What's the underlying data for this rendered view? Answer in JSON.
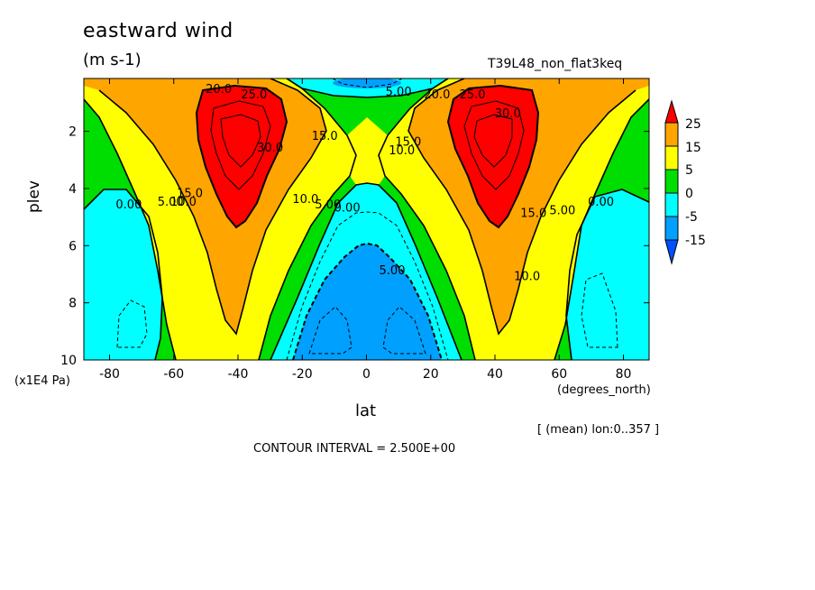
{
  "chart_data": {
    "type": "contour",
    "title": "eastward wind",
    "units": "(m s-1)",
    "run_name": "T39L48_non_flat3keq",
    "xlabel": "lat",
    "x_units": "(degrees_north)",
    "ylabel": "plev",
    "y_units": "(x1E4 Pa)",
    "xlim": [
      -88,
      88
    ],
    "ylim": [
      10,
      0.15
    ],
    "y_inverted": true,
    "x_ticks": [
      -80,
      -60,
      -40,
      -20,
      0,
      20,
      40,
      60,
      80
    ],
    "y_ticks": [
      2,
      4,
      6,
      8,
      10
    ],
    "contour_interval_text": "CONTOUR INTERVAL = 2.500E+00",
    "average_note": "[ (mean) lon:0..357 ]",
    "colorbar": {
      "labels": [
        "25",
        "15",
        "5",
        "0",
        "-5",
        "-15"
      ],
      "colors": [
        "#ff0000",
        "#ffa500",
        "#ffff00",
        "#00dd00",
        "#00ffff",
        "#00a0ff",
        "#0050ff"
      ]
    },
    "jets": [
      {
        "lat": -40,
        "plev": 2.0,
        "max": 35
      },
      {
        "lat": 40,
        "plev": 2.0,
        "max": 35
      }
    ],
    "easterly_minimum": {
      "lat": 0,
      "plev": 9.2,
      "min": -17.5
    },
    "contour_labels": [
      {
        "text": "20.0",
        "lat": -46,
        "plev": 0.65
      },
      {
        "text": "25.0",
        "lat": -35,
        "plev": 0.85
      },
      {
        "text": "30.0",
        "lat": -30,
        "plev": 2.7
      },
      {
        "text": "15.0",
        "lat": -13,
        "plev": 2.3
      },
      {
        "text": "10.0",
        "lat": -19,
        "plev": 4.5
      },
      {
        "text": "5.00",
        "lat": -12,
        "plev": 4.7
      },
      {
        "text": "0.00",
        "lat": -6,
        "plev": 4.8
      },
      {
        "text": "15.0",
        "lat": -55,
        "plev": 4.3
      },
      {
        "text": "10.0",
        "lat": -57,
        "plev": 4.6
      },
      {
        "text": "5.00",
        "lat": -61,
        "plev": 4.6
      },
      {
        "text": "0.00",
        "lat": -74,
        "plev": 4.7
      },
      {
        "text": "5.00",
        "lat": 10,
        "plev": 0.75
      },
      {
        "text": "20.0",
        "lat": 22,
        "plev": 0.85
      },
      {
        "text": "25.0",
        "lat": 33,
        "plev": 0.85
      },
      {
        "text": "30.0",
        "lat": 44,
        "plev": 1.5
      },
      {
        "text": "15.0",
        "lat": 13,
        "plev": 2.5
      },
      {
        "text": "10.0",
        "lat": 11,
        "plev": 2.8
      },
      {
        "text": "15.0",
        "lat": 52,
        "plev": 5.0
      },
      {
        "text": "5.00",
        "lat": 61,
        "plev": 4.9
      },
      {
        "text": "0.00",
        "lat": 73,
        "plev": 4.6
      },
      {
        "text": "10.0",
        "lat": 50,
        "plev": 7.2
      },
      {
        "text": "5.00",
        "lat": 8,
        "plev": 7.0
      }
    ]
  }
}
